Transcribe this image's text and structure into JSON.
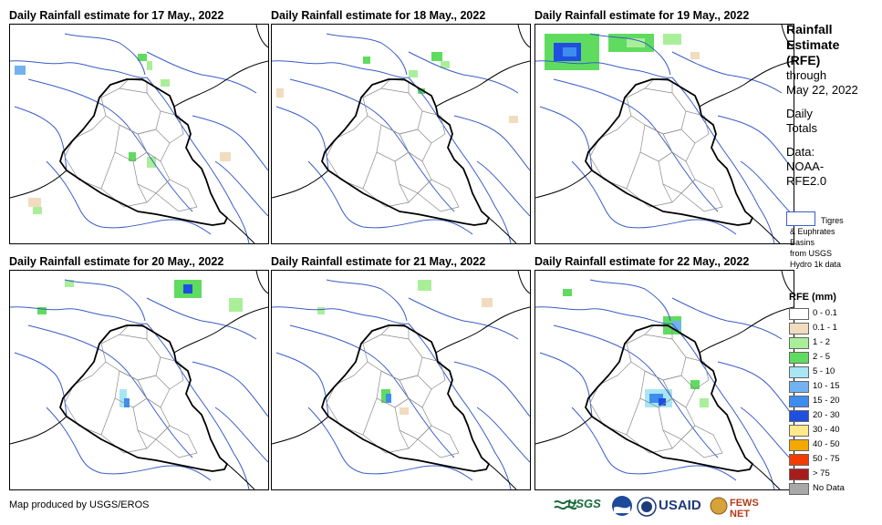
{
  "panels": [
    {
      "title": "Daily Rainfall estimate for 17 May., 2022"
    },
    {
      "title": "Daily Rainfall estimate for 18 May., 2022"
    },
    {
      "title": "Daily Rainfall estimate for 19 May., 2022"
    },
    {
      "title": "Daily Rainfall estimate for 20 May., 2022"
    },
    {
      "title": "Daily Rainfall estimate for 21 May., 2022"
    },
    {
      "title": "Daily Rainfall estimate for 22 May., 2022"
    }
  ],
  "legend": {
    "title_line1": "Rainfall",
    "title_line2": "Estimate",
    "title_line3": "(RFE)",
    "through": "through",
    "date": "May 22, 2022",
    "daily": "Daily",
    "totals": "Totals",
    "data_label": "Data:",
    "source1": "NOAA-",
    "source2": "RFE2.0",
    "basin_l1": "Tigres",
    "basin_l2": "& Euphrates",
    "basin_l3": "Basins",
    "basin_l4": "from USGS",
    "basin_l5": "Hydro 1k data",
    "rfe_header": "RFE (mm)",
    "classes": [
      {
        "label": "0 - 0.1",
        "color": "#ffffff"
      },
      {
        "label": "0.1 - 1",
        "color": "#f2dcbf"
      },
      {
        "label": "1 - 2",
        "color": "#a9ef9a"
      },
      {
        "label": "2 - 5",
        "color": "#5fdc5f"
      },
      {
        "label": "5 - 10",
        "color": "#a8e6f5"
      },
      {
        "label": "10 - 15",
        "color": "#72b2f0"
      },
      {
        "label": "15 - 20",
        "color": "#3d8cf0"
      },
      {
        "label": "20 - 30",
        "color": "#1f4fe0"
      },
      {
        "label": "30 - 40",
        "color": "#ffe98a"
      },
      {
        "label": "40 - 50",
        "color": "#f5a800"
      },
      {
        "label": "50 - 75",
        "color": "#f53c00"
      },
      {
        "label": "> 75",
        "color": "#a81c1c"
      },
      {
        "label": "No Data",
        "color": "#a8a8a8"
      }
    ]
  },
  "footer": {
    "credit": "Map produced by USGS/EROS",
    "logo_usgs": "USGS",
    "logo_usaid": "USAID",
    "logo_fews": "FEWS NET"
  }
}
